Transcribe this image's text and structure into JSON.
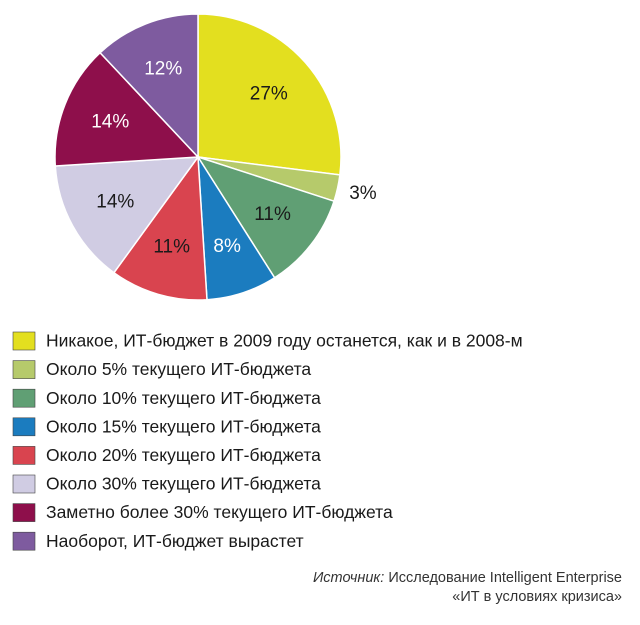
{
  "chart_data": {
    "type": "pie",
    "categories": [
      "Никакое, ИТ-бюджет в 2009 году останется, как и в 2008-м",
      "Около 5% текущего ИТ-бюджета",
      "Около 10% текущего ИТ-бюджета",
      "Около 15% текущего ИТ-бюджета",
      "Около 20% текущего ИТ-бюджета",
      "Около 30% текущего ИТ-бюджета",
      "Заметно более 30% текущего ИТ-бюджета",
      "Наоборот, ИТ-бюджет вырастет"
    ],
    "values": [
      27,
      3,
      11,
      8,
      11,
      14,
      14,
      12
    ],
    "value_labels": [
      "27%",
      "3%",
      "11%",
      "8%",
      "11%",
      "14%",
      "14%",
      "12%"
    ],
    "colors": [
      "#e3df1f",
      "#b6ca6b",
      "#609f74",
      "#1b7cbf",
      "#d9444f",
      "#d0cce3",
      "#8e0f4b",
      "#7e5b9f"
    ],
    "source": {
      "label": "Источник:",
      "text": "Исследование Intelligent Enterprise",
      "line2": "«ИТ в условиях кризиса»"
    }
  }
}
